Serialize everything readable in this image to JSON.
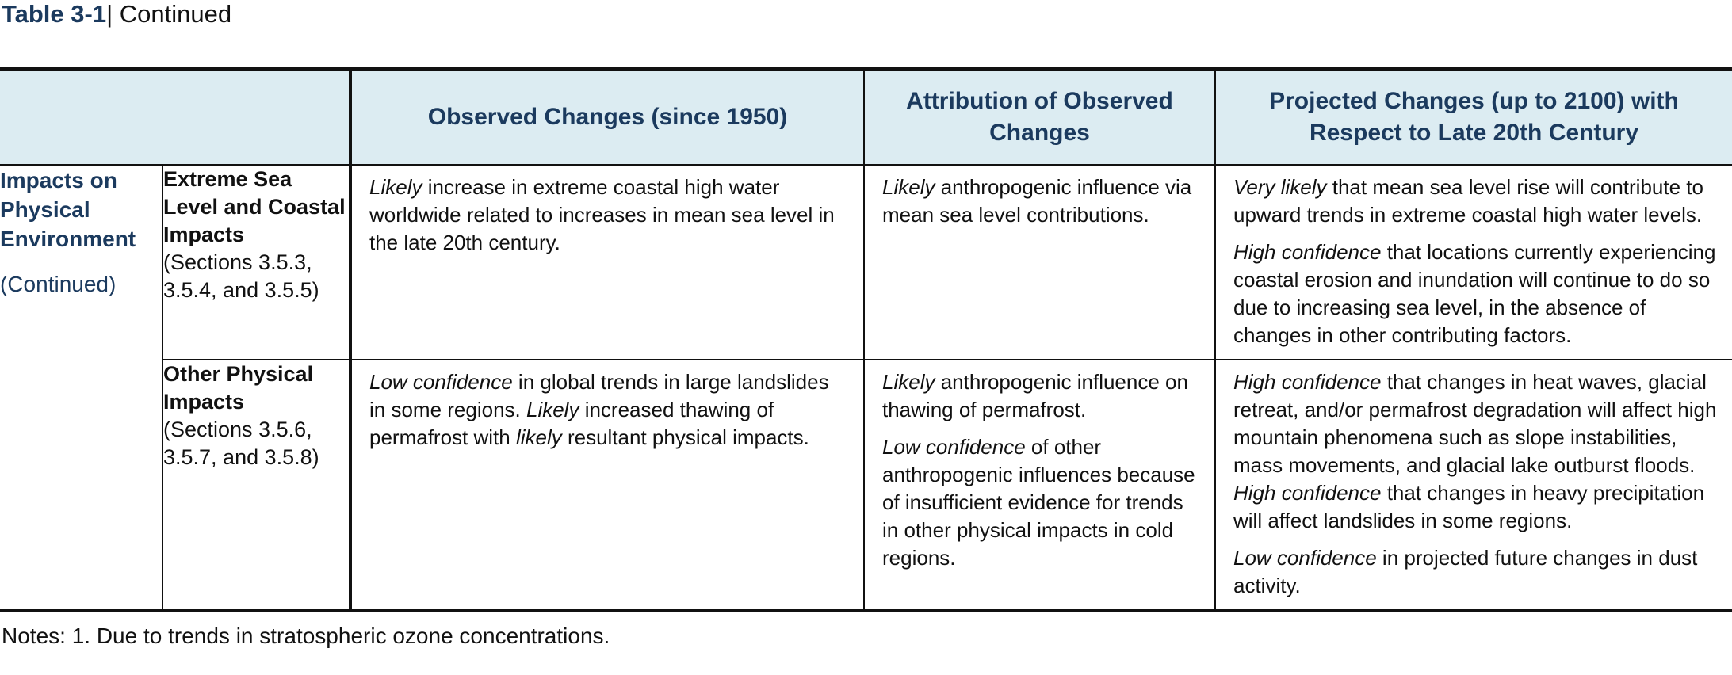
{
  "caption": {
    "label": "Table 3-1",
    "separator": "|",
    "text": " Continued"
  },
  "headers": {
    "observed": "Observed Changes (since 1950)",
    "attribution": "Attribution of Observed Changes",
    "projected": "Projected Changes (up to 2100) with Respect to Late 20th Century"
  },
  "category": {
    "title": "Impacts on Physical Environment",
    "note": "(Continued)"
  },
  "rows": [
    {
      "title": "Extreme Sea Level and Coastal Impacts",
      "sections": "(Sections 3.5.3, 3.5.4, and 3.5.5)",
      "observed": [
        {
          "em": "Likely",
          "text": " increase in extreme coastal high water worldwide related to increases in mean sea level in the late 20th century."
        }
      ],
      "attribution": [
        {
          "em": "Likely",
          "text": " anthropogenic influence via mean sea level contributions."
        }
      ],
      "projected": [
        {
          "em": "Very likely",
          "text": " that mean sea level rise will contribute to upward trends in extreme coastal high water levels."
        },
        {
          "em": "High confidence",
          "text": " that locations currently experiencing coastal erosion and inundation will continue to do so due to increasing sea level, in the absence of changes in other contributing factors."
        }
      ]
    },
    {
      "title": "Other Physical Impacts",
      "sections": "(Sections 3.5.6, 3.5.7, and 3.5.8)",
      "observed": [
        {
          "em1": "Low confidence",
          "t1": " in global trends in large landslides in some regions. ",
          "em2": "Likely",
          "t2": " increased thawing of permafrost with ",
          "em3": "likely",
          "t3": " resultant physical impacts."
        }
      ],
      "attribution": [
        {
          "em": "Likely",
          "text": " anthropogenic influence on thawing of permafrost."
        },
        {
          "em": "Low confidence",
          "text": " of other anthropogenic influences because of insufficient evidence for trends in other physical impacts in cold regions."
        }
      ],
      "projected": [
        {
          "em1": "High confidence",
          "t1": " that changes in heat waves, glacial retreat, and/or permafrost degradation will affect high mountain phenomena such as slope instabilities, mass movements, and glacial lake outburst floods. ",
          "em2": "High confidence",
          "t2": " that changes in heavy precipitation will affect landslides in some regions."
        },
        {
          "em": "Low confidence",
          "text": " in projected future changes in dust activity."
        }
      ]
    }
  ],
  "notes": "Notes: 1. Due to trends in stratospheric ozone concentrations."
}
